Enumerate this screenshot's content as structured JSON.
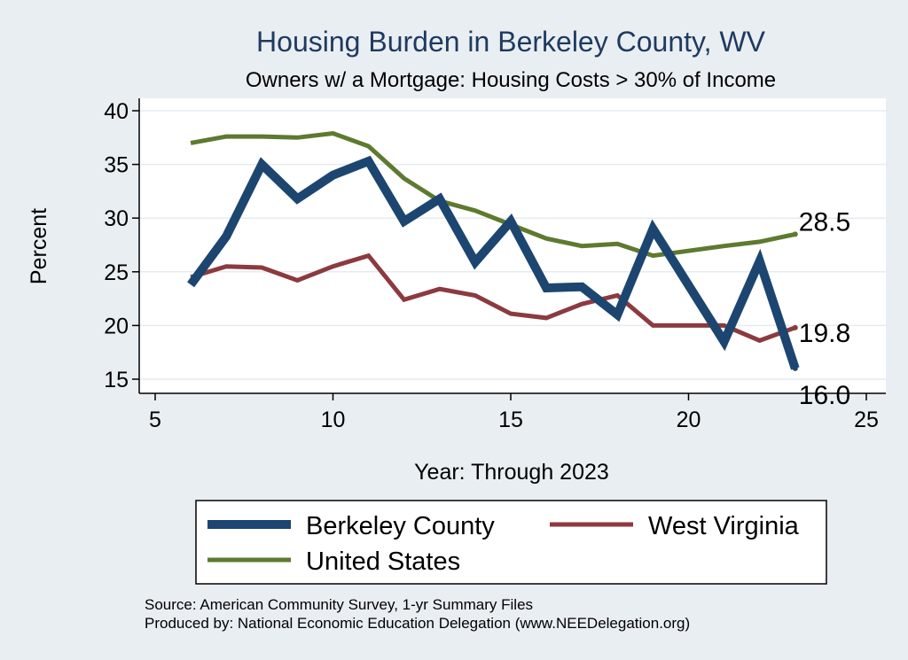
{
  "chart_data": {
    "type": "line",
    "title": "Housing Burden in Berkeley County, WV",
    "subtitle": "Owners w/ a Mortgage: Housing Costs > 30% of Income",
    "xlabel": "Year: Through 2023",
    "ylabel": "Percent",
    "xlim": [
      5,
      25
    ],
    "ylim": [
      14.5,
      41
    ],
    "xticks": [
      5,
      10,
      15,
      20,
      25
    ],
    "yticks": [
      15,
      20,
      25,
      30,
      35,
      40
    ],
    "grid": true,
    "legend_position": "bottom",
    "series": [
      {
        "name": "Berkeley County",
        "color": "#1c4670",
        "x": [
          6,
          7,
          8,
          9,
          10,
          11,
          12,
          13,
          14,
          15,
          16,
          17,
          18,
          19,
          21,
          22,
          23
        ],
        "values": [
          23.8,
          28.3,
          35.0,
          31.8,
          34.0,
          35.3,
          29.7,
          31.8,
          25.9,
          29.7,
          23.5,
          23.6,
          21.0,
          29.0,
          18.5,
          26.0,
          16.0
        ]
      },
      {
        "name": "West Virginia",
        "color": "#8c3a3f",
        "x": [
          6,
          7,
          8,
          9,
          10,
          11,
          12,
          13,
          14,
          15,
          16,
          17,
          18,
          19,
          21,
          22,
          23
        ],
        "values": [
          24.5,
          25.5,
          25.4,
          24.2,
          25.5,
          26.5,
          22.4,
          23.4,
          22.8,
          21.1,
          20.7,
          22.0,
          22.8,
          20.0,
          20.0,
          18.6,
          19.8
        ]
      },
      {
        "name": "United States",
        "color": "#5d7a2f",
        "x": [
          6,
          7,
          8,
          9,
          10,
          11,
          12,
          13,
          14,
          15,
          16,
          17,
          18,
          19,
          21,
          22,
          23
        ],
        "values": [
          37.0,
          37.6,
          37.6,
          37.5,
          37.9,
          36.7,
          33.7,
          31.6,
          30.7,
          29.4,
          28.1,
          27.4,
          27.6,
          26.5,
          27.4,
          27.8,
          28.5
        ]
      }
    ],
    "end_labels": [
      {
        "series": "United States",
        "text": "28.5"
      },
      {
        "series": "West Virginia",
        "text": "19.8"
      },
      {
        "series": "Berkeley County",
        "text": "16.0"
      }
    ]
  },
  "source_line": "Source: American Community Survey, 1-yr Summary Files",
  "produced_line": "Produced by: National Economic Education Delegation (www.NEEDelegation.org)"
}
